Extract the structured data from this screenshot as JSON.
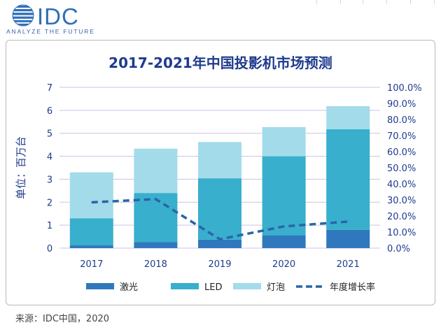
{
  "brand": {
    "logo_text": "IDC",
    "tagline": "ANALYZE THE FUTURE"
  },
  "source": "来源：IDC中国，2020",
  "colors": {
    "laser": "#2f78bd",
    "led": "#38afcc",
    "lamp": "#a3dbea",
    "growth": "#2a64a8",
    "axis_text": "#1f3b8c",
    "title": "#1f3b8c"
  },
  "chart_data": {
    "type": "bar",
    "stacked": true,
    "title": "2017-2021年中国投影机市场预测",
    "ylabel": "单位：百万台",
    "categories": [
      "2017",
      "2018",
      "2019",
      "2020",
      "2021"
    ],
    "ylim": [
      0,
      7
    ],
    "yticks": [
      "0",
      "1",
      "2",
      "3",
      "4",
      "5",
      "6",
      "7"
    ],
    "y2lim": [
      0,
      100
    ],
    "y2ticks": [
      "0.0%",
      "10.0%",
      "20.0%",
      "30.0%",
      "40.0%",
      "50.0%",
      "60.0%",
      "70.0%",
      "80.0%",
      "90.0%",
      "100.0%"
    ],
    "grid": true,
    "legend_position": "bottom",
    "series": [
      {
        "name": "激光",
        "values": [
          0.12,
          0.26,
          0.37,
          0.56,
          0.8
        ]
      },
      {
        "name": "LED",
        "values": [
          1.18,
          2.14,
          2.67,
          3.44,
          4.38
        ]
      },
      {
        "name": "灯泡",
        "values": [
          2.0,
          1.93,
          1.58,
          1.27,
          1.0
        ]
      }
    ],
    "line_series": {
      "name": "年度增长率",
      "axis": "secondary",
      "style": "dashed",
      "values": [
        28.5,
        30.5,
        5.5,
        13.5,
        16.5
      ]
    }
  }
}
